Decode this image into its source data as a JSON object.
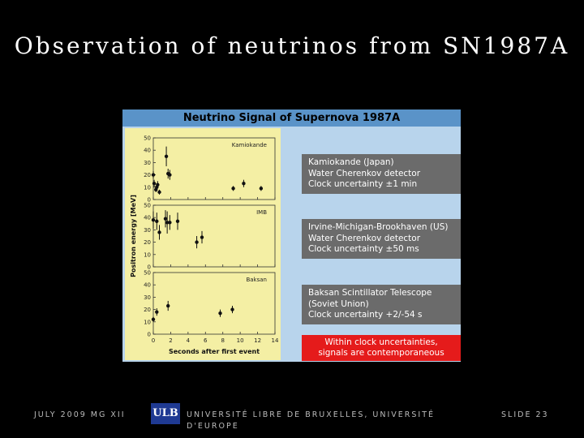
{
  "slide": {
    "title": "Observation of neutrinos from SN1987A",
    "footer_left": "JULY 2009 MG XII",
    "logo_text": "ULB",
    "footer_center": "UNIVERSITÉ LIBRE DE BRUXELLES, UNIVERSITÉ D'EUROPE",
    "footer_right": "SLIDE 23"
  },
  "figure": {
    "header": "Neutrino Signal of Supernova 1987A",
    "callouts": [
      {
        "lines": [
          "Kamiokande (Japan)",
          "Water Cherenkov detector",
          "Clock uncertainty  ±1 min"
        ]
      },
      {
        "lines": [
          "Irvine-Michigan-Brookhaven (US)",
          "Water Cherenkov detector",
          "Clock uncertainty  ±50 ms"
        ]
      },
      {
        "lines": [
          "Baksan Scintillator Telescope",
          "(Soviet Union)",
          "Clock uncertainty  +2/-54 s"
        ]
      }
    ],
    "conclusion": [
      "Within clock uncertainties,",
      "signals are contemporaneous"
    ]
  },
  "colors": {
    "header_bg": "#5a93c8",
    "plot_bg": "#f4efa4",
    "callout_bg": "#6b6b6b",
    "conclusion_bg": "#e51b1b"
  },
  "chart_data": {
    "type": "scatter",
    "xlabel": "Seconds after first event",
    "ylabel": "Positron energy [MeV]",
    "xlim": [
      0,
      14
    ],
    "xticks": [
      0,
      2,
      4,
      6,
      8,
      10,
      12,
      14
    ],
    "ylim": [
      0,
      50
    ],
    "yticks": [
      0,
      10,
      20,
      30,
      40,
      50
    ],
    "panels": [
      {
        "name": "Kamiokande",
        "points": [
          {
            "x": 0.0,
            "y": 20,
            "err": 3
          },
          {
            "x": 0.1,
            "y": 13,
            "err": 3
          },
          {
            "x": 0.3,
            "y": 8,
            "err": 2
          },
          {
            "x": 0.4,
            "y": 10,
            "err": 3
          },
          {
            "x": 0.5,
            "y": 12,
            "err": 3
          },
          {
            "x": 0.7,
            "y": 6,
            "err": 2
          },
          {
            "x": 1.5,
            "y": 35,
            "err": 8
          },
          {
            "x": 1.7,
            "y": 21,
            "err": 4
          },
          {
            "x": 1.9,
            "y": 20,
            "err": 4
          },
          {
            "x": 9.2,
            "y": 9,
            "err": 2
          },
          {
            "x": 10.4,
            "y": 13,
            "err": 3
          },
          {
            "x": 12.4,
            "y": 9,
            "err": 2
          }
        ]
      },
      {
        "name": "IMB",
        "points": [
          {
            "x": 0.0,
            "y": 38,
            "err": 7
          },
          {
            "x": 0.4,
            "y": 37,
            "err": 7
          },
          {
            "x": 0.7,
            "y": 28,
            "err": 6
          },
          {
            "x": 1.4,
            "y": 39,
            "err": 7
          },
          {
            "x": 1.6,
            "y": 36,
            "err": 9
          },
          {
            "x": 1.9,
            "y": 36,
            "err": 6
          },
          {
            "x": 2.8,
            "y": 37,
            "err": 7
          },
          {
            "x": 5.0,
            "y": 20,
            "err": 5
          },
          {
            "x": 5.6,
            "y": 24,
            "err": 5
          }
        ]
      },
      {
        "name": "Baksan",
        "points": [
          {
            "x": 0.0,
            "y": 12,
            "err": 2
          },
          {
            "x": 0.4,
            "y": 18,
            "err": 3
          },
          {
            "x": 1.7,
            "y": 23,
            "err": 4
          },
          {
            "x": 7.7,
            "y": 17,
            "err": 3
          },
          {
            "x": 9.1,
            "y": 20,
            "err": 3
          }
        ]
      }
    ]
  }
}
